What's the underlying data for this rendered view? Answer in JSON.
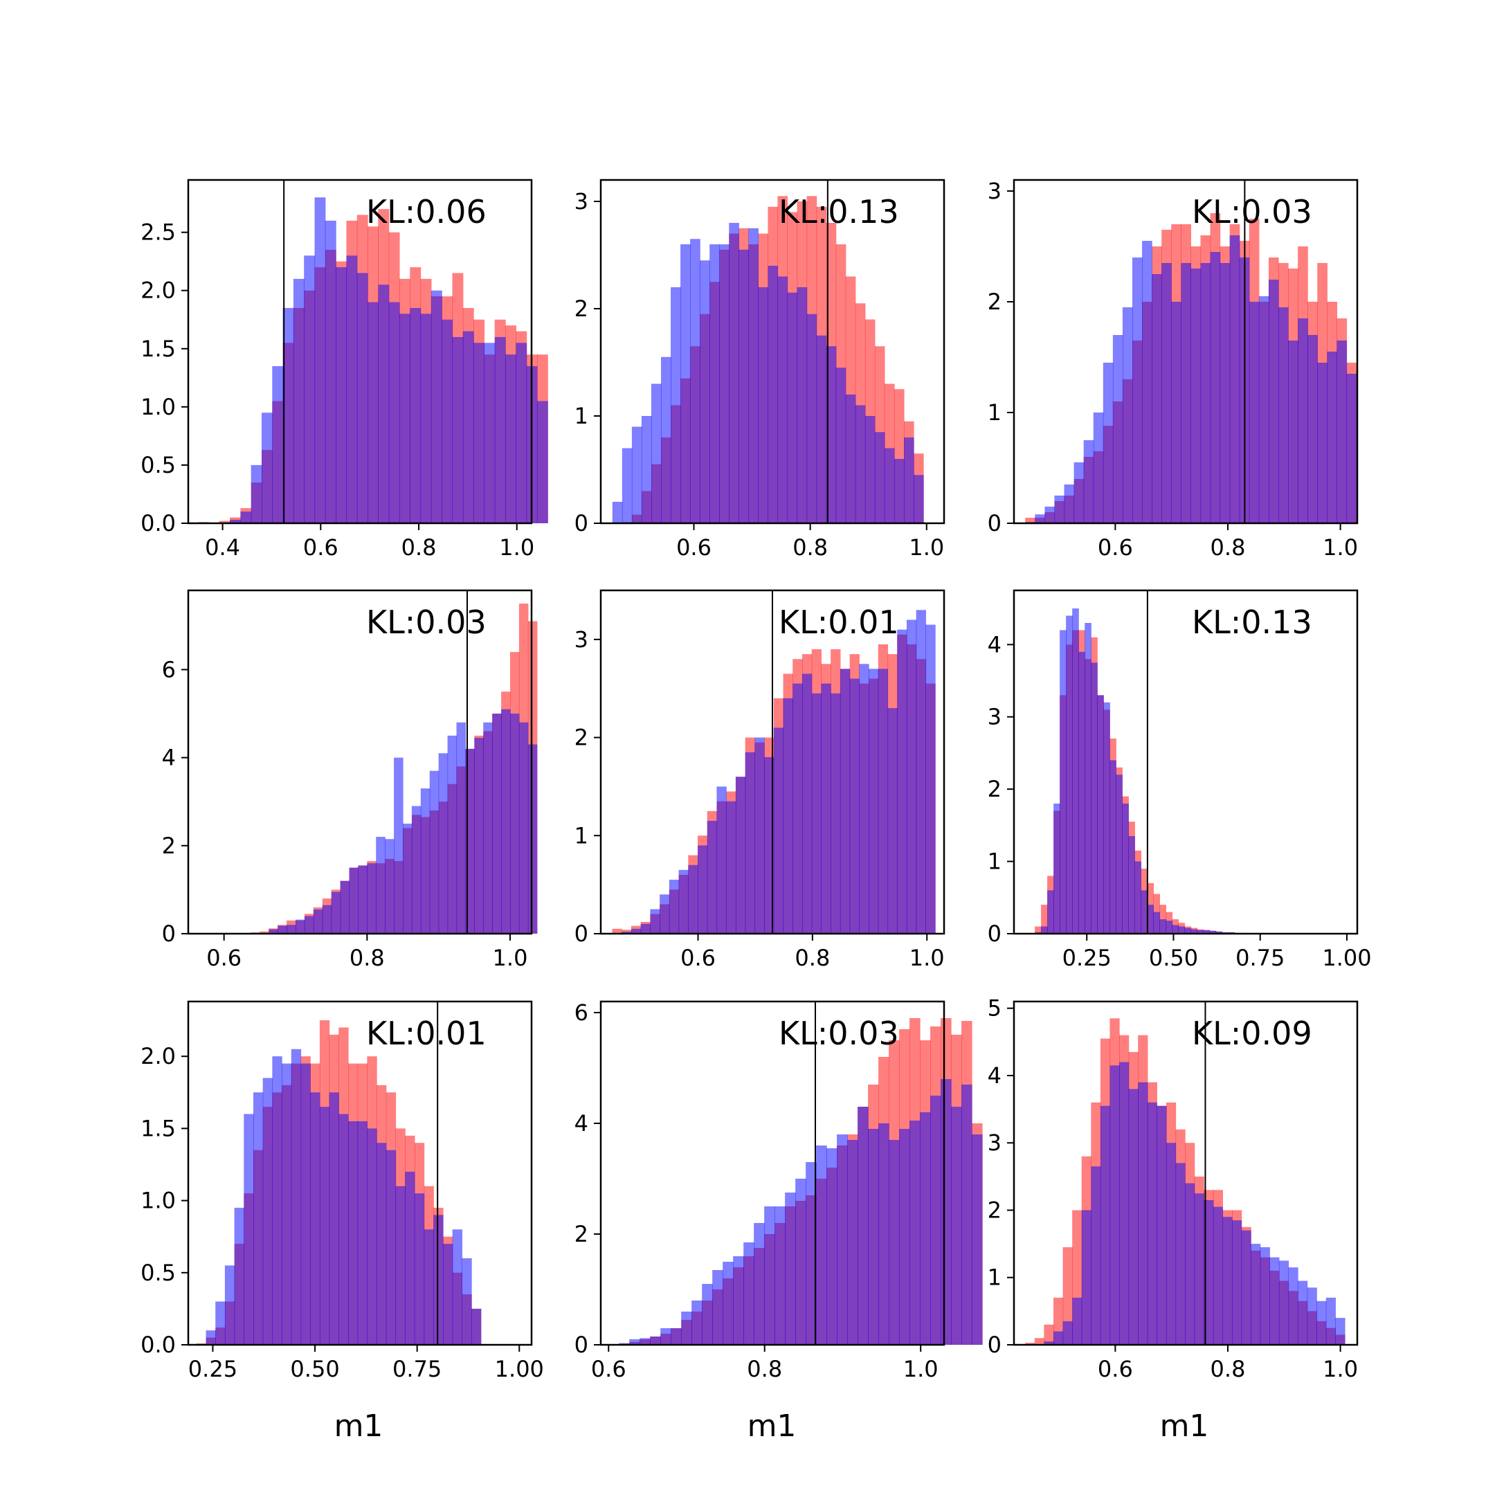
{
  "figure": {
    "xlabel": "m1",
    "colors": {
      "red": "#ff0000",
      "blue": "#0000ff",
      "overlap": "#7f3fbf",
      "opacity": 0.5
    }
  },
  "chart_data": [
    {
      "type": "histogram",
      "annotation": "KL:0.06",
      "vline": 0.525,
      "xlim": [
        0.33,
        1.03
      ],
      "ylim": [
        0,
        2.95
      ],
      "xticks": [
        0.4,
        0.6,
        0.8,
        1.0
      ],
      "xtick_labels": [
        "0.4",
        "0.6",
        "0.8",
        "1.0"
      ],
      "yticks": [
        0,
        0.5,
        1.0,
        1.5,
        2.0,
        2.5
      ],
      "ytick_labels": [
        "0.0",
        "0.5",
        "1.0",
        "1.5",
        "2.0",
        "2.5"
      ],
      "bins": {
        "start": 0.35,
        "width": 0.0216
      },
      "red": [
        0.01,
        0,
        0.02,
        0.05,
        0.13,
        0.35,
        0.63,
        1.05,
        1.55,
        1.85,
        2.0,
        2.2,
        2.35,
        2.25,
        2.6,
        2.65,
        2.55,
        2.7,
        2.5,
        2.1,
        2.2,
        2.1,
        1.95,
        1.95,
        2.15,
        1.85,
        1.75,
        1.45,
        1.75,
        1.7,
        1.65,
        1.45,
        1.45
      ],
      "blue": [
        0,
        0,
        0,
        0.03,
        0.1,
        0.5,
        0.95,
        1.35,
        1.85,
        2.1,
        2.3,
        2.8,
        2.6,
        2.2,
        2.3,
        2.15,
        1.9,
        2.05,
        1.9,
        1.8,
        1.85,
        1.8,
        2.0,
        1.75,
        1.6,
        1.65,
        1.55,
        1.55,
        1.6,
        1.45,
        1.55,
        1.35,
        1.05
      ]
    },
    {
      "type": "histogram",
      "annotation": "KL:0.13",
      "vline": 0.83,
      "xlim": [
        0.44,
        1.03
      ],
      "ylim": [
        0,
        3.2
      ],
      "xticks": [
        0.6,
        0.8,
        1.0
      ],
      "xtick_labels": [
        "0.6",
        "0.8",
        "1.0"
      ],
      "yticks": [
        0,
        1,
        2,
        3
      ],
      "ytick_labels": [
        "0",
        "1",
        "2",
        "3"
      ],
      "bins": {
        "start": 0.46,
        "width": 0.0167
      },
      "red": [
        0,
        0.01,
        0.08,
        0.3,
        0.55,
        0.8,
        1.1,
        1.35,
        1.65,
        1.95,
        2.25,
        2.55,
        2.7,
        2.75,
        2.6,
        2.7,
        2.95,
        3.05,
        2.9,
        3.0,
        3.05,
        2.95,
        2.8,
        2.6,
        2.3,
        2.05,
        1.9,
        1.65,
        1.3,
        1.25,
        0.95,
        0.65
      ],
      "blue": [
        0.2,
        0.7,
        0.9,
        1.0,
        1.3,
        1.55,
        2.2,
        2.6,
        2.65,
        2.45,
        2.6,
        2.6,
        2.8,
        2.55,
        2.75,
        2.2,
        2.4,
        2.3,
        2.15,
        2.2,
        1.95,
        1.75,
        1.65,
        1.45,
        1.2,
        1.1,
        1.0,
        0.85,
        0.7,
        0.6,
        0.8,
        0.45
      ]
    },
    {
      "type": "histogram",
      "annotation": "KL:0.03",
      "vline": 0.83,
      "xlim": [
        0.42,
        1.03
      ],
      "ylim": [
        0,
        3.1
      ],
      "xticks": [
        0.6,
        0.8,
        1.0
      ],
      "xtick_labels": [
        "0.6",
        "0.8",
        "1.0"
      ],
      "yticks": [
        0,
        1,
        2,
        3
      ],
      "ytick_labels": [
        "0",
        "1",
        "2",
        "3"
      ],
      "bins": {
        "start": 0.44,
        "width": 0.0173
      },
      "red": [
        0.05,
        0.05,
        0.1,
        0.2,
        0.25,
        0.4,
        0.6,
        0.65,
        0.88,
        1.1,
        1.3,
        1.65,
        2.0,
        2.5,
        2.65,
        2.7,
        2.7,
        2.5,
        2.6,
        2.8,
        2.5,
        2.7,
        2.55,
        2.75,
        2.0,
        2.4,
        2.35,
        2.3,
        2.5,
        2.0,
        2.35,
        2.0,
        1.85,
        1.45
      ],
      "blue": [
        0.01,
        0.08,
        0.15,
        0.25,
        0.35,
        0.55,
        0.75,
        1.0,
        1.45,
        1.7,
        1.95,
        2.4,
        2.55,
        2.25,
        2.35,
        2.0,
        2.35,
        2.3,
        2.35,
        2.45,
        2.35,
        2.6,
        2.4,
        2.0,
        2.05,
        2.2,
        1.95,
        1.65,
        1.85,
        1.7,
        1.45,
        1.55,
        1.65,
        1.35
      ]
    },
    {
      "type": "histogram",
      "annotation": "KL:0.03",
      "vline": 0.94,
      "xlim": [
        0.55,
        1.03
      ],
      "ylim": [
        0,
        7.8
      ],
      "xticks": [
        0.6,
        0.8,
        1.0
      ],
      "xtick_labels": [
        "0.6",
        "0.8",
        "1.0"
      ],
      "yticks": [
        0,
        2,
        4,
        6
      ],
      "ytick_labels": [
        "0",
        "2",
        "4",
        "6"
      ],
      "bins": {
        "start": 0.6,
        "width": 0.0125
      },
      "red": [
        0,
        0,
        0,
        0.03,
        0.05,
        0.12,
        0.2,
        0.3,
        0.3,
        0.45,
        0.6,
        0.8,
        1.0,
        1.2,
        1.5,
        1.55,
        1.65,
        1.6,
        1.7,
        1.65,
        2.4,
        2.7,
        2.65,
        2.8,
        3.0,
        3.4,
        3.8,
        4.2,
        4.5,
        4.6,
        5.0,
        5.5,
        6.4,
        7.5,
        7.1
      ],
      "blue": [
        0,
        0,
        0,
        0,
        0.02,
        0.1,
        0.18,
        0.2,
        0.32,
        0.4,
        0.55,
        0.65,
        0.95,
        1.2,
        1.5,
        1.55,
        1.6,
        2.2,
        2.15,
        4.0,
        2.5,
        2.9,
        3.3,
        3.7,
        4.1,
        4.5,
        4.8,
        4.2,
        4.45,
        4.8,
        5.0,
        5.1,
        5.0,
        4.8,
        4.3
      ]
    },
    {
      "type": "histogram",
      "annotation": "KL:0.01",
      "vline": 0.73,
      "xlim": [
        0.43,
        1.03
      ],
      "ylim": [
        0,
        3.5
      ],
      "xticks": [
        0.6,
        0.8,
        1.0
      ],
      "xtick_labels": [
        "0.6",
        "0.8",
        "1.0"
      ],
      "yticks": [
        0,
        1,
        2,
        3
      ],
      "ytick_labels": [
        "0",
        "1",
        "2",
        "3"
      ],
      "bins": {
        "start": 0.45,
        "width": 0.0166
      },
      "red": [
        0.05,
        0.04,
        0.08,
        0.12,
        0.2,
        0.3,
        0.45,
        0.6,
        0.8,
        1.0,
        1.25,
        1.35,
        1.45,
        1.6,
        2.0,
        1.95,
        2.0,
        2.4,
        2.65,
        2.8,
        2.85,
        2.9,
        2.75,
        2.9,
        2.7,
        2.85,
        2.55,
        2.6,
        2.95,
        2.85,
        3.05,
        2.95,
        2.8,
        2.55
      ],
      "blue": [
        0,
        0.02,
        0.05,
        0.1,
        0.25,
        0.4,
        0.55,
        0.65,
        0.7,
        0.9,
        1.15,
        1.5,
        1.35,
        1.6,
        1.85,
        2.0,
        1.8,
        2.1,
        2.4,
        2.55,
        2.65,
        2.45,
        2.55,
        2.45,
        2.7,
        2.6,
        2.75,
        2.7,
        2.7,
        2.3,
        3.1,
        3.2,
        3.3,
        3.15
      ]
    },
    {
      "type": "histogram",
      "annotation": "KL:0.13",
      "vline": 0.425,
      "xlim": [
        0.04,
        1.03
      ],
      "ylim": [
        0,
        4.75
      ],
      "xticks": [
        0.25,
        0.5,
        0.75,
        1.0
      ],
      "xtick_labels": [
        "0.25",
        "0.50",
        "0.75",
        "1.00"
      ],
      "yticks": [
        0,
        1,
        2,
        3,
        4
      ],
      "ytick_labels": [
        "0",
        "1",
        "2",
        "3",
        "4"
      ],
      "bins": {
        "start": 0.1,
        "width": 0.018
      },
      "red": [
        0.1,
        0.4,
        0.8,
        1.7,
        3.3,
        4.0,
        4.2,
        4.2,
        3.8,
        4.1,
        3.3,
        3.1,
        2.7,
        2.3,
        1.9,
        1.55,
        1.15,
        0.9,
        0.7,
        0.55,
        0.4,
        0.3,
        0.2,
        0.15,
        0.1,
        0.08,
        0.06,
        0.05,
        0.04,
        0.03,
        0.02,
        0.02,
        0.01,
        0.01
      ],
      "blue": [
        0.02,
        0.1,
        0.6,
        1.8,
        4.2,
        4.4,
        4.5,
        3.9,
        4.3,
        3.75,
        3.3,
        3.2,
        2.4,
        2.2,
        1.8,
        1.35,
        1.0,
        0.6,
        0.4,
        0.3,
        0.2,
        0.18,
        0.12,
        0.1,
        0.08,
        0.06,
        0.05,
        0.05,
        0.04,
        0.03,
        0.02,
        0.02,
        0.01,
        0.01
      ]
    },
    {
      "type": "histogram",
      "annotation": "KL:0.01",
      "vline": 0.8,
      "xlim": [
        0.19,
        1.03
      ],
      "ylim": [
        0,
        2.38
      ],
      "xticks": [
        0.25,
        0.5,
        0.75,
        1.0
      ],
      "xtick_labels": [
        "0.25",
        "0.50",
        "0.75",
        "1.00"
      ],
      "yticks": [
        0,
        0.5,
        1.0,
        1.5,
        2.0
      ],
      "ytick_labels": [
        "0.0",
        "0.5",
        "1.0",
        "1.5",
        "2.0"
      ],
      "bins": {
        "start": 0.21,
        "width": 0.0232
      },
      "red": [
        0.01,
        0.05,
        0.12,
        0.3,
        0.7,
        1.05,
        1.35,
        1.65,
        1.75,
        1.8,
        1.95,
        2.0,
        1.95,
        2.25,
        2.15,
        2.2,
        1.95,
        1.95,
        2.0,
        1.8,
        1.75,
        1.5,
        1.45,
        1.4,
        1.1,
        0.95,
        0.75,
        0.5,
        0.35,
        0.25
      ],
      "blue": [
        0,
        0.1,
        0.3,
        0.55,
        0.95,
        1.6,
        1.75,
        1.85,
        2.0,
        1.95,
        2.05,
        1.95,
        1.75,
        1.65,
        1.75,
        1.6,
        1.55,
        1.55,
        1.5,
        1.4,
        1.35,
        1.1,
        1.2,
        1.05,
        0.8,
        0.9,
        0.7,
        0.8,
        0.6,
        0.25
      ]
    },
    {
      "type": "histogram",
      "annotation": "KL:0.03",
      "vline": 0.865,
      "xlim": [
        0.59,
        1.03
      ],
      "ylim": [
        0,
        6.2
      ],
      "xticks": [
        0.6,
        0.8,
        1.0
      ],
      "xtick_labels": [
        "0.6",
        "0.8",
        "1.0"
      ],
      "yticks": [
        0,
        2,
        4,
        6
      ],
      "ytick_labels": [
        "0",
        "2",
        "4",
        "6"
      ],
      "bins": {
        "start": 0.6,
        "width": 0.0133
      },
      "red": [
        0.01,
        0.02,
        0.05,
        0.1,
        0.15,
        0.2,
        0.3,
        0.45,
        0.6,
        0.8,
        1.0,
        1.2,
        1.4,
        1.6,
        1.75,
        2.0,
        2.2,
        2.5,
        2.6,
        2.7,
        3.0,
        3.2,
        3.6,
        3.8,
        4.3,
        4.7,
        5.2,
        5.5,
        5.7,
        5.9,
        5.5,
        5.75,
        5.9,
        5.6,
        5.85,
        4.0
      ],
      "blue": [
        0,
        0.03,
        0.1,
        0.12,
        0.15,
        0.3,
        0.3,
        0.6,
        0.8,
        1.1,
        1.35,
        1.5,
        1.6,
        1.85,
        2.2,
        2.5,
        2.5,
        2.75,
        3.0,
        3.3,
        3.6,
        3.55,
        3.8,
        3.7,
        4.3,
        3.9,
        4.0,
        3.7,
        3.9,
        4.05,
        4.2,
        4.5,
        4.8,
        4.3,
        4.7,
        3.8
      ]
    },
    {
      "type": "histogram",
      "annotation": "KL:0.09",
      "vline": 0.76,
      "xlim": [
        0.42,
        1.03
      ],
      "ylim": [
        0,
        5.1
      ],
      "xticks": [
        0.6,
        0.8,
        1.0
      ],
      "xtick_labels": [
        "0.6",
        "0.8",
        "1.0"
      ],
      "yticks": [
        0,
        1,
        2,
        3,
        4,
        5
      ],
      "ytick_labels": [
        "0",
        "1",
        "2",
        "3",
        "4",
        "5"
      ],
      "bins": {
        "start": 0.44,
        "width": 0.0167
      },
      "red": [
        0.03,
        0.1,
        0.3,
        0.7,
        1.45,
        2.0,
        2.8,
        3.6,
        4.55,
        4.85,
        4.6,
        4.35,
        4.6,
        3.9,
        3.55,
        3.6,
        3.2,
        3.0,
        2.5,
        2.3,
        2.3,
        2.0,
        2.0,
        1.75,
        1.4,
        1.3,
        1.1,
        0.95,
        0.8,
        0.65,
        0.5,
        0.35,
        0.25,
        0.15
      ],
      "blue": [
        0,
        0.01,
        0.05,
        0.2,
        0.35,
        0.7,
        2.0,
        2.65,
        3.55,
        4.15,
        4.2,
        3.8,
        3.9,
        3.6,
        3.55,
        3.0,
        2.7,
        2.4,
        2.25,
        2.15,
        2.05,
        1.9,
        1.85,
        1.7,
        1.5,
        1.45,
        1.3,
        1.25,
        1.15,
        0.95,
        0.85,
        0.65,
        0.7,
        0.4
      ]
    }
  ]
}
